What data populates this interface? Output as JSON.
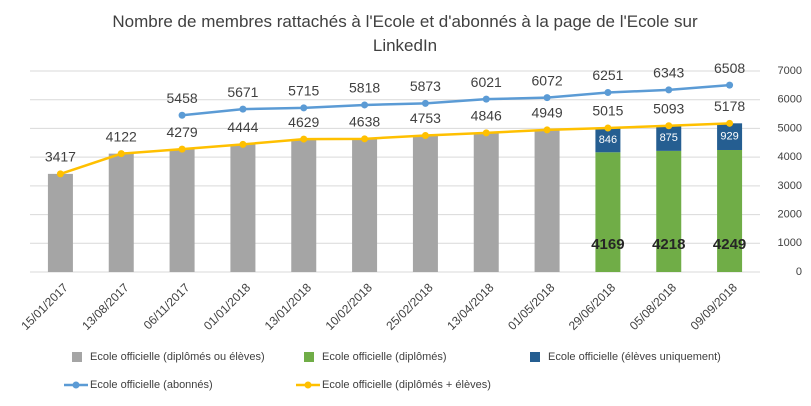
{
  "chart_data": {
    "type": "combo",
    "title": "Nombre de membres rattachés à l'Ecole et d'abonnés à la page de l'Ecole sur LinkedIn",
    "categories": [
      "15/01/2017",
      "13/08/2017",
      "06/11/2017",
      "01/01/2018",
      "13/01/2018",
      "10/02/2018",
      "25/02/2018",
      "13/04/2018",
      "01/05/2018",
      "29/06/2018",
      "05/08/2018",
      "09/09/2018"
    ],
    "series": [
      {
        "name": "Ecole officielle (diplômés ou élèves)",
        "type": "bar",
        "stack": "a",
        "color": "#a5a5a5",
        "values": [
          3417,
          4122,
          4279,
          4444,
          4629,
          4638,
          4753,
          4846,
          4949,
          null,
          null,
          null
        ]
      },
      {
        "name": "Ecole officielle (diplômés)",
        "type": "bar",
        "stack": "b",
        "color": "#70ad47",
        "labels": true,
        "values": [
          null,
          null,
          null,
          null,
          null,
          null,
          null,
          null,
          null,
          4169,
          4218,
          4249
        ]
      },
      {
        "name": "Ecole officielle (élèves uniquement)",
        "type": "bar",
        "stack": "b",
        "color": "#255e91",
        "labels": true,
        "values": [
          null,
          null,
          null,
          null,
          null,
          null,
          null,
          null,
          null,
          846,
          875,
          929
        ]
      },
      {
        "name": "Ecole officielle (abonnés)",
        "type": "line",
        "color": "#5b9bd5",
        "labels": true,
        "values": [
          null,
          null,
          5458,
          5671,
          5715,
          5818,
          5873,
          6021,
          6072,
          6251,
          6343,
          6508
        ]
      },
      {
        "name": "Ecole officielle (diplômés + élèves)",
        "type": "line",
        "color": "#ffc000",
        "labels": true,
        "values": [
          3417,
          4122,
          4279,
          4444,
          4629,
          4638,
          4753,
          4846,
          4949,
          5015,
          5093,
          5178
        ]
      }
    ],
    "y2lim": [
      0,
      7000
    ],
    "y2ticks": [
      0,
      1000,
      2000,
      3000,
      4000,
      5000,
      6000,
      7000
    ],
    "grid": true
  }
}
